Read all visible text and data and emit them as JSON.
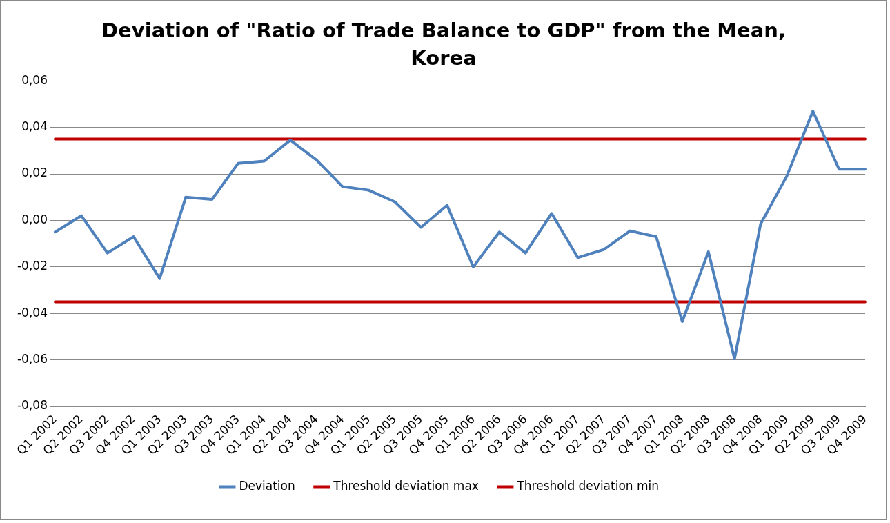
{
  "chart_data": {
    "type": "line",
    "title": "Deviation of \"Ratio of Trade Balance to GDP\" from the Mean, Korea",
    "categories": [
      "Q1 2002",
      "Q2 2002",
      "Q3 2002",
      "Q4 2002",
      "Q1 2003",
      "Q2 2003",
      "Q3 2003",
      "Q4 2003",
      "Q1 2004",
      "Q2 2004",
      "Q3 2004",
      "Q4 2004",
      "Q1 2005",
      "Q2 2005",
      "Q3 2005",
      "Q4 2005",
      "Q1 2006",
      "Q2 2006",
      "Q3 2006",
      "Q4 2006",
      "Q1 2007",
      "Q2 2007",
      "Q3 2007",
      "Q4 2007",
      "Q1 2008",
      "Q2 2008",
      "Q3 2008",
      "Q4 2008",
      "Q1 2009",
      "Q2 2009",
      "Q3 2009",
      "Q4 2009"
    ],
    "series": [
      {
        "name": "Deviation",
        "color": "#4f81bd",
        "values": [
          -0.005,
          0.002,
          -0.014,
          -0.007,
          -0.025,
          0.01,
          0.009,
          0.0245,
          0.0255,
          0.0345,
          0.026,
          0.0145,
          0.013,
          0.008,
          -0.003,
          0.0065,
          -0.02,
          -0.005,
          -0.014,
          0.003,
          -0.016,
          -0.0125,
          -0.0045,
          -0.007,
          -0.0435,
          -0.0135,
          -0.0595,
          -0.0015,
          0.019,
          0.047,
          0.022,
          0.022
        ]
      },
      {
        "name": "Threshold deviation max",
        "color": "#c00000",
        "values": [
          0.035,
          0.035,
          0.035,
          0.035,
          0.035,
          0.035,
          0.035,
          0.035,
          0.035,
          0.035,
          0.035,
          0.035,
          0.035,
          0.035,
          0.035,
          0.035,
          0.035,
          0.035,
          0.035,
          0.035,
          0.035,
          0.035,
          0.035,
          0.035,
          0.035,
          0.035,
          0.035,
          0.035,
          0.035,
          0.035,
          0.035,
          0.035
        ]
      },
      {
        "name": "Threshold deviation min",
        "color": "#c00000",
        "values": [
          -0.035,
          -0.035,
          -0.035,
          -0.035,
          -0.035,
          -0.035,
          -0.035,
          -0.035,
          -0.035,
          -0.035,
          -0.035,
          -0.035,
          -0.035,
          -0.035,
          -0.035,
          -0.035,
          -0.035,
          -0.035,
          -0.035,
          -0.035,
          -0.035,
          -0.035,
          -0.035,
          -0.035,
          -0.035,
          -0.035,
          -0.035,
          -0.035,
          -0.035,
          -0.035,
          -0.035,
          -0.035
        ]
      }
    ],
    "ylim": [
      -0.08,
      0.06
    ],
    "yticks": [
      {
        "value": -0.08,
        "label": "-0,08"
      },
      {
        "value": -0.06,
        "label": "-0,06"
      },
      {
        "value": -0.04,
        "label": "-0,04"
      },
      {
        "value": -0.02,
        "label": "-0,02"
      },
      {
        "value": 0,
        "label": "0,00"
      },
      {
        "value": 0.02,
        "label": "0,02"
      },
      {
        "value": 0.04,
        "label": "0,04"
      },
      {
        "value": 0.06,
        "label": "0,06"
      }
    ],
    "grid": "y",
    "legend": "bottom",
    "marker": "none",
    "line_style": "solid"
  }
}
